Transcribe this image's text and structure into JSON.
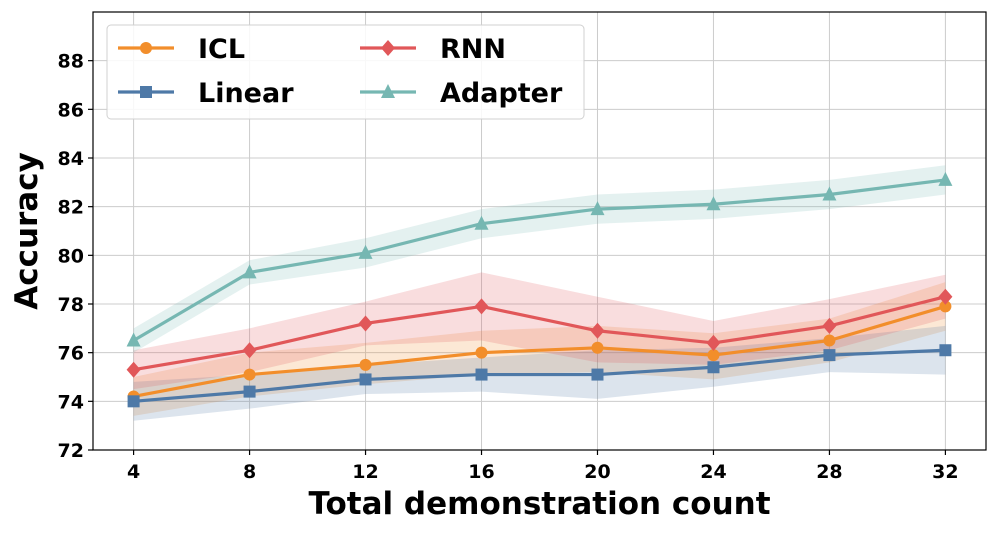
{
  "chart_data": {
    "type": "line",
    "title": "",
    "xlabel": "Total demonstration count",
    "ylabel": "Accuracy",
    "x": [
      4,
      8,
      12,
      16,
      20,
      24,
      28,
      32
    ],
    "xlim": [
      2.6,
      33.4
    ],
    "ylim": [
      72,
      90
    ],
    "yticks": [
      72,
      74,
      76,
      78,
      80,
      82,
      84,
      86,
      88
    ],
    "grid": true,
    "legend_position": "top-left",
    "series": [
      {
        "name": "ICL",
        "color": "#F28E2B",
        "marker": "circle",
        "values": [
          74.2,
          75.1,
          75.5,
          76.0,
          76.2,
          75.9,
          76.5,
          77.9
        ],
        "lower": [
          73.4,
          74.2,
          74.7,
          75.1,
          75.2,
          74.9,
          75.6,
          76.9
        ],
        "upper": [
          75.0,
          76.0,
          76.4,
          76.9,
          77.1,
          76.8,
          77.4,
          78.9
        ]
      },
      {
        "name": "Linear",
        "color": "#4E79A7",
        "marker": "square",
        "values": [
          74.0,
          74.4,
          74.9,
          75.1,
          75.1,
          75.4,
          75.9,
          76.1
        ],
        "lower": [
          73.2,
          73.7,
          74.3,
          74.4,
          74.1,
          74.6,
          75.2,
          75.1
        ],
        "upper": [
          74.8,
          75.1,
          75.5,
          75.8,
          76.1,
          76.2,
          76.6,
          77.1
        ]
      },
      {
        "name": "RNN",
        "color": "#E15759",
        "marker": "diamond",
        "values": [
          75.3,
          76.1,
          77.2,
          77.9,
          76.9,
          76.4,
          77.1,
          78.3
        ],
        "lower": [
          74.5,
          75.2,
          76.3,
          76.5,
          75.6,
          75.5,
          76.1,
          77.4
        ],
        "upper": [
          76.1,
          77.0,
          78.1,
          79.3,
          78.3,
          77.3,
          78.2,
          79.2
        ]
      },
      {
        "name": "Adapter",
        "color": "#76B7B2",
        "marker": "triangle",
        "values": [
          76.5,
          79.3,
          80.1,
          81.3,
          81.9,
          82.1,
          82.5,
          83.1
        ],
        "lower": [
          76.0,
          78.8,
          79.5,
          80.7,
          81.3,
          81.5,
          81.9,
          82.5
        ],
        "upper": [
          77.0,
          79.8,
          80.7,
          81.9,
          82.5,
          82.7,
          83.1,
          83.7
        ]
      }
    ]
  }
}
